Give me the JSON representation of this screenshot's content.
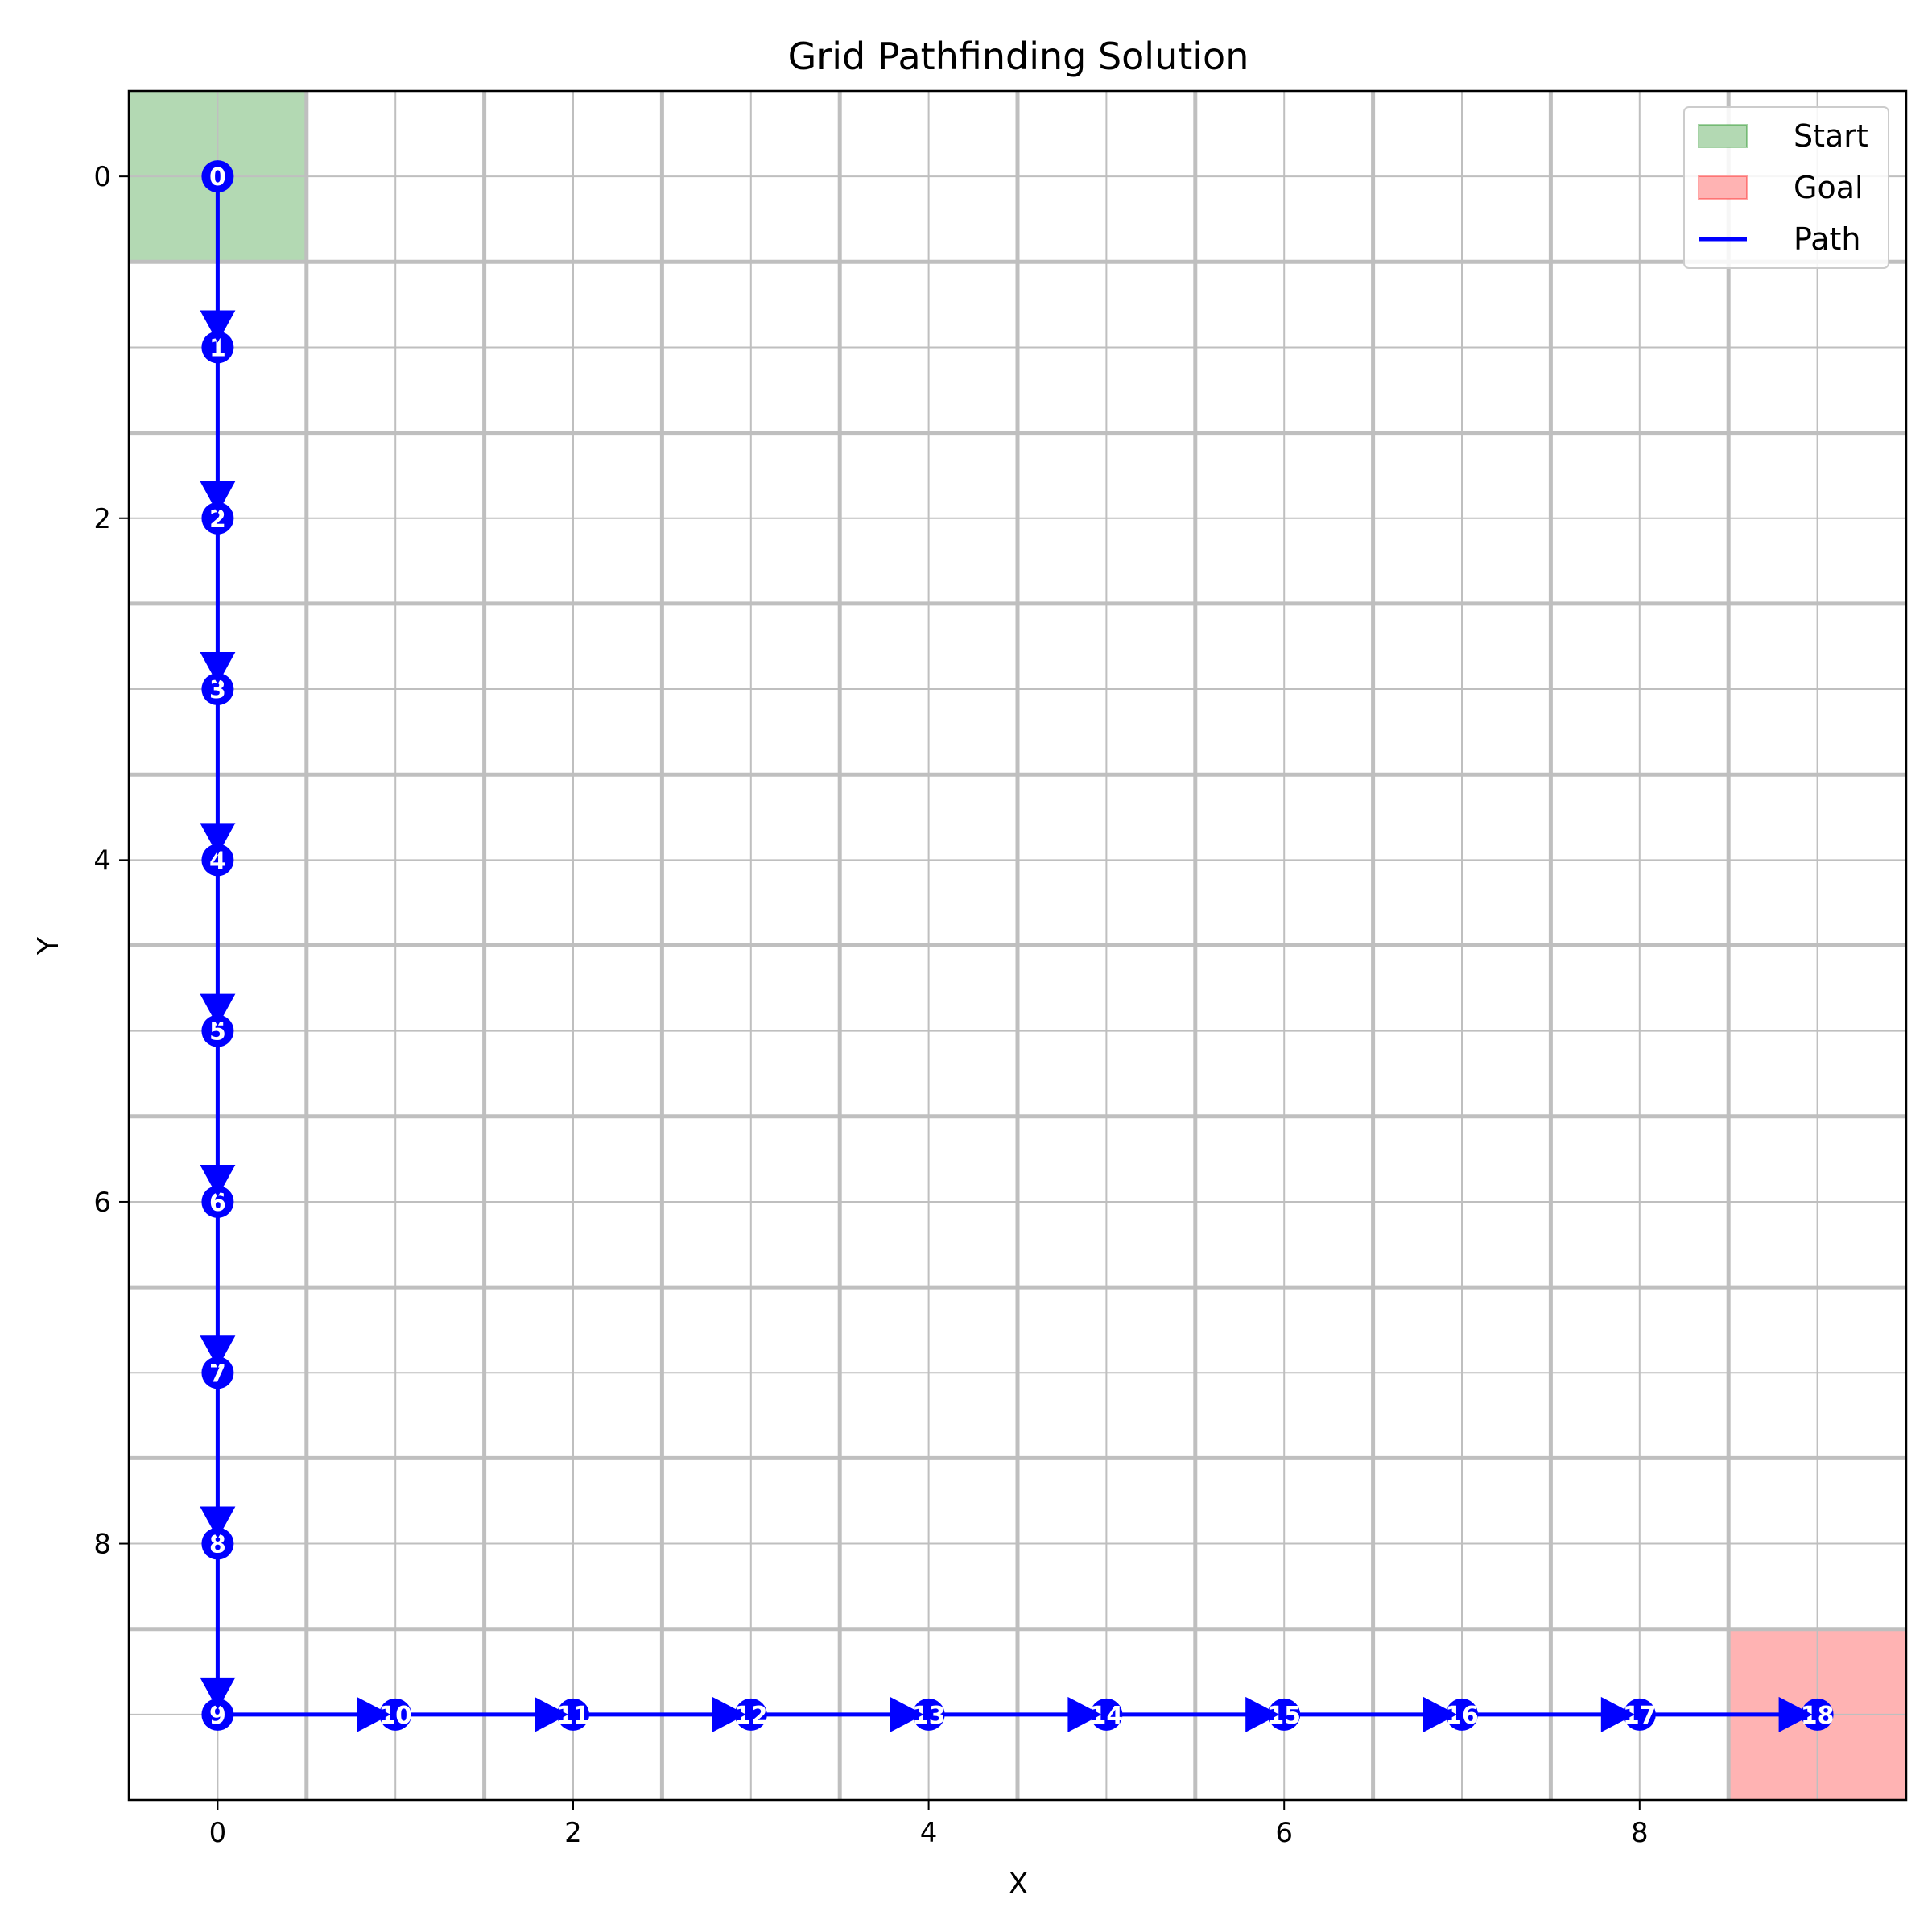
{
  "chart_data": {
    "type": "line",
    "title": "Grid Pathfinding Solution",
    "xlabel": "X",
    "ylabel": "Y",
    "xlim": [
      -0.5,
      9.5
    ],
    "ylim": [
      9.5,
      -0.5
    ],
    "y_inverted": true,
    "xticks": [
      0,
      2,
      4,
      6,
      8
    ],
    "yticks": [
      0,
      2,
      4,
      6,
      8
    ],
    "grid": true,
    "legend_position": "top-right",
    "legend": [
      {
        "name": "Start",
        "kind": "patch",
        "color": "#008000"
      },
      {
        "name": "Goal",
        "kind": "patch",
        "color": "#ff0000"
      },
      {
        "name": "Path",
        "kind": "line",
        "color": "#0000ff"
      }
    ],
    "start_cell": {
      "x": 0,
      "y": 0
    },
    "goal_cell": {
      "x": 9,
      "y": 9
    },
    "path": [
      {
        "step": 0,
        "x": 0,
        "y": 0
      },
      {
        "step": 1,
        "x": 0,
        "y": 1
      },
      {
        "step": 2,
        "x": 0,
        "y": 2
      },
      {
        "step": 3,
        "x": 0,
        "y": 3
      },
      {
        "step": 4,
        "x": 0,
        "y": 4
      },
      {
        "step": 5,
        "x": 0,
        "y": 5
      },
      {
        "step": 6,
        "x": 0,
        "y": 6
      },
      {
        "step": 7,
        "x": 0,
        "y": 7
      },
      {
        "step": 8,
        "x": 0,
        "y": 8
      },
      {
        "step": 9,
        "x": 0,
        "y": 9
      },
      {
        "step": 10,
        "x": 1,
        "y": 9
      },
      {
        "step": 11,
        "x": 2,
        "y": 9
      },
      {
        "step": 12,
        "x": 3,
        "y": 9
      },
      {
        "step": 13,
        "x": 4,
        "y": 9
      },
      {
        "step": 14,
        "x": 5,
        "y": 9
      },
      {
        "step": 15,
        "x": 6,
        "y": 9
      },
      {
        "step": 16,
        "x": 7,
        "y": 9
      },
      {
        "step": 17,
        "x": 8,
        "y": 9
      },
      {
        "step": 18,
        "x": 9,
        "y": 9
      }
    ],
    "colors": {
      "start_fill": "#b3d9b3",
      "goal_fill": "#ffb3b3",
      "path": "#0000ff",
      "grid": "#bfbfbf"
    }
  }
}
